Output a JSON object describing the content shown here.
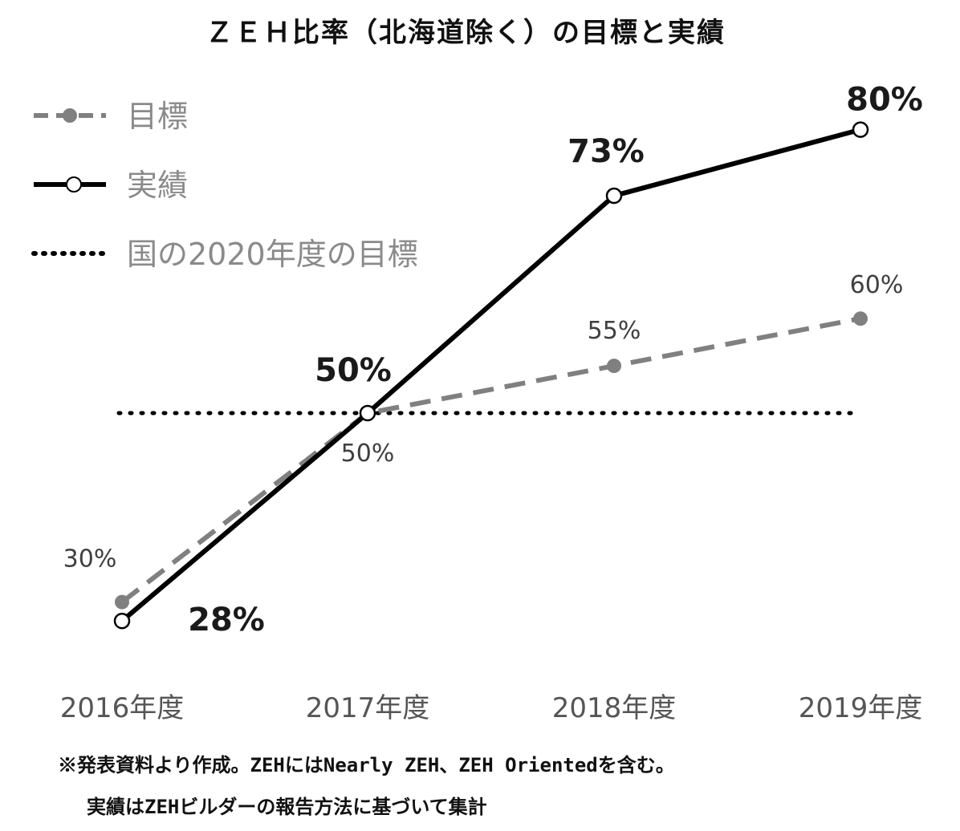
{
  "chart_data": {
    "type": "line",
    "title": "ＺＥＨ比率（北海道除く）の目標と実績",
    "categories": [
      "2016年度",
      "2017年度",
      "2018年度",
      "2019年度"
    ],
    "series": [
      {
        "name": "目標",
        "style": "dashed",
        "color": "#808080",
        "values": [
          30,
          50,
          55,
          60
        ],
        "labels": [
          "30%",
          "50%",
          "55%",
          "60%"
        ]
      },
      {
        "name": "実績",
        "style": "solid",
        "color": "#000000",
        "values": [
          28,
          50,
          73,
          80
        ],
        "labels": [
          "28%",
          "50%",
          "73%",
          "80%"
        ]
      },
      {
        "name": "国の2020年度の目標",
        "style": "dotted",
        "color": "#000000",
        "value": 50
      }
    ],
    "legend_position": "top-left",
    "grid": false
  },
  "notes": [
    "※発表資料より作成。ZEHにはNearly ZEH、ZEH Orientedを含む。",
    "実績はZEHビルダーの報告方法に基づいて集計"
  ]
}
